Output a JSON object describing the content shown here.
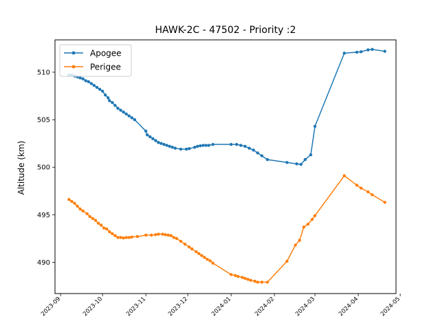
{
  "chart_data": {
    "type": "line",
    "title": "HAWK-2C - 47502 - Priority :2",
    "xlabel": "",
    "ylabel": "Altitude (km)",
    "x_axis": {
      "type": "date",
      "lim": [
        "2023-08-28",
        "2024-04-28"
      ],
      "ticks": [
        {
          "date": "2023-09-01",
          "label": "2023-09"
        },
        {
          "date": "2023-10-01",
          "label": "2023-10"
        },
        {
          "date": "2023-11-01",
          "label": "2023-11"
        },
        {
          "date": "2023-12-01",
          "label": "2023-12"
        },
        {
          "date": "2024-01-01",
          "label": "2024-01"
        },
        {
          "date": "2024-02-01",
          "label": "2024-02"
        },
        {
          "date": "2024-03-01",
          "label": "2024-03"
        },
        {
          "date": "2024-04-01",
          "label": "2024-04"
        },
        {
          "date": "2024-05-01",
          "label": "2024-05"
        }
      ]
    },
    "y_axis": {
      "lim": [
        486.7,
        513.4
      ],
      "ticks": [
        {
          "value": 490,
          "label": "490"
        },
        {
          "value": 495,
          "label": "495"
        },
        {
          "value": 500,
          "label": "500"
        },
        {
          "value": 505,
          "label": "505"
        },
        {
          "value": 510,
          "label": "510"
        }
      ]
    },
    "grid": false,
    "legend": "top-left",
    "series": [
      {
        "name": "Apogee",
        "color": "#1f77b4",
        "points": [
          [
            "2023-09-07",
            509.7
          ],
          [
            "2023-09-09",
            509.7
          ],
          [
            "2023-09-11",
            509.6
          ],
          [
            "2023-09-13",
            509.5
          ],
          [
            "2023-09-15",
            509.4
          ],
          [
            "2023-09-17",
            509.3
          ],
          [
            "2023-09-19",
            509.1
          ],
          [
            "2023-09-21",
            509.0
          ],
          [
            "2023-09-23",
            508.8
          ],
          [
            "2023-09-25",
            508.6
          ],
          [
            "2023-09-27",
            508.4
          ],
          [
            "2023-09-29",
            508.2
          ],
          [
            "2023-10-01",
            508.0
          ],
          [
            "2023-10-03",
            507.6
          ],
          [
            "2023-10-05",
            507.3
          ],
          [
            "2023-10-06",
            507.0
          ],
          [
            "2023-10-08",
            506.8
          ],
          [
            "2023-10-10",
            506.5
          ],
          [
            "2023-10-12",
            506.2
          ],
          [
            "2023-10-14",
            506.0
          ],
          [
            "2023-10-16",
            505.8
          ],
          [
            "2023-10-18",
            505.6
          ],
          [
            "2023-10-20",
            505.4
          ],
          [
            "2023-10-22",
            505.2
          ],
          [
            "2023-10-24",
            505.0
          ],
          [
            "2023-11-01",
            503.8
          ],
          [
            "2023-11-02",
            503.4
          ],
          [
            "2023-11-04",
            503.2
          ],
          [
            "2023-11-06",
            503.0
          ],
          [
            "2023-11-08",
            502.8
          ],
          [
            "2023-11-10",
            502.6
          ],
          [
            "2023-11-12",
            502.5
          ],
          [
            "2023-11-14",
            502.4
          ],
          [
            "2023-11-16",
            502.3
          ],
          [
            "2023-11-18",
            502.2
          ],
          [
            "2023-11-20",
            502.1
          ],
          [
            "2023-11-22",
            502.0
          ],
          [
            "2023-11-26",
            501.9
          ],
          [
            "2023-11-30",
            501.9
          ],
          [
            "2023-12-02",
            501.95
          ],
          [
            "2023-12-06",
            502.1
          ],
          [
            "2023-12-08",
            502.2
          ],
          [
            "2023-12-10",
            502.25
          ],
          [
            "2023-12-12",
            502.3
          ],
          [
            "2023-12-14",
            502.3
          ],
          [
            "2023-12-16",
            502.3
          ],
          [
            "2023-12-19",
            502.4
          ],
          [
            "2024-01-01",
            502.4
          ],
          [
            "2024-01-05",
            502.4
          ],
          [
            "2024-01-08",
            502.3
          ],
          [
            "2024-01-11",
            502.2
          ],
          [
            "2024-01-14",
            502.0
          ],
          [
            "2024-01-17",
            501.8
          ],
          [
            "2024-01-20",
            501.5
          ],
          [
            "2024-01-23",
            501.2
          ],
          [
            "2024-01-27",
            500.8
          ],
          [
            "2024-02-10",
            500.5
          ],
          [
            "2024-02-17",
            500.35
          ],
          [
            "2024-02-20",
            500.3
          ],
          [
            "2024-02-23",
            500.8
          ],
          [
            "2024-02-27",
            501.3
          ],
          [
            "2024-03-01",
            504.3
          ],
          [
            "2024-03-22",
            512.0
          ],
          [
            "2024-03-31",
            512.1
          ],
          [
            "2024-04-03",
            512.15
          ],
          [
            "2024-04-08",
            512.35
          ],
          [
            "2024-04-11",
            512.4
          ],
          [
            "2024-04-20",
            512.2
          ]
        ]
      },
      {
        "name": "Perigee",
        "color": "#ff7f0e",
        "points": [
          [
            "2023-09-07",
            496.6
          ],
          [
            "2023-09-09",
            496.4
          ],
          [
            "2023-09-11",
            496.2
          ],
          [
            "2023-09-13",
            495.9
          ],
          [
            "2023-09-15",
            495.6
          ],
          [
            "2023-09-17",
            495.4
          ],
          [
            "2023-09-20",
            495.1
          ],
          [
            "2023-09-22",
            494.8
          ],
          [
            "2023-09-24",
            494.6
          ],
          [
            "2023-09-26",
            494.4
          ],
          [
            "2023-09-28",
            494.1
          ],
          [
            "2023-09-30",
            493.9
          ],
          [
            "2023-10-02",
            493.6
          ],
          [
            "2023-10-04",
            493.5
          ],
          [
            "2023-10-06",
            493.2
          ],
          [
            "2023-10-08",
            493.0
          ],
          [
            "2023-10-10",
            492.8
          ],
          [
            "2023-10-12",
            492.6
          ],
          [
            "2023-10-14",
            492.6
          ],
          [
            "2023-10-16",
            492.55
          ],
          [
            "2023-10-18",
            492.6
          ],
          [
            "2023-10-20",
            492.6
          ],
          [
            "2023-10-22",
            492.65
          ],
          [
            "2023-10-26",
            492.7
          ],
          [
            "2023-11-01",
            492.85
          ],
          [
            "2023-11-05",
            492.85
          ],
          [
            "2023-11-08",
            492.9
          ],
          [
            "2023-11-10",
            492.95
          ],
          [
            "2023-11-13",
            492.95
          ],
          [
            "2023-11-15",
            492.9
          ],
          [
            "2023-11-17",
            492.85
          ],
          [
            "2023-11-19",
            492.8
          ],
          [
            "2023-11-21",
            492.6
          ],
          [
            "2023-11-23",
            492.5
          ],
          [
            "2023-11-26",
            492.2
          ],
          [
            "2023-11-29",
            491.9
          ],
          [
            "2023-12-02",
            491.6
          ],
          [
            "2023-12-04",
            491.4
          ],
          [
            "2023-12-07",
            491.1
          ],
          [
            "2023-12-09",
            490.9
          ],
          [
            "2023-12-11",
            490.7
          ],
          [
            "2023-12-13",
            490.5
          ],
          [
            "2023-12-15",
            490.3
          ],
          [
            "2023-12-17",
            490.15
          ],
          [
            "2023-12-19",
            489.9
          ],
          [
            "2024-01-01",
            488.7
          ],
          [
            "2024-01-04",
            488.6
          ],
          [
            "2024-01-06",
            488.5
          ],
          [
            "2024-01-09",
            488.4
          ],
          [
            "2024-01-11",
            488.3
          ],
          [
            "2024-01-13",
            488.2
          ],
          [
            "2024-01-15",
            488.1
          ],
          [
            "2024-01-18",
            488.0
          ],
          [
            "2024-01-20",
            487.9
          ],
          [
            "2024-01-23",
            487.9
          ],
          [
            "2024-01-27",
            487.9
          ],
          [
            "2024-02-10",
            490.1
          ],
          [
            "2024-02-16",
            491.8
          ],
          [
            "2024-02-19",
            492.3
          ],
          [
            "2024-02-22",
            493.7
          ],
          [
            "2024-02-25",
            494.0
          ],
          [
            "2024-02-28",
            494.5
          ],
          [
            "2024-03-01",
            494.9
          ],
          [
            "2024-03-22",
            499.1
          ],
          [
            "2024-03-31",
            498.1
          ],
          [
            "2024-04-03",
            497.8
          ],
          [
            "2024-04-08",
            497.4
          ],
          [
            "2024-04-11",
            497.1
          ],
          [
            "2024-04-20",
            496.3
          ]
        ]
      }
    ]
  }
}
